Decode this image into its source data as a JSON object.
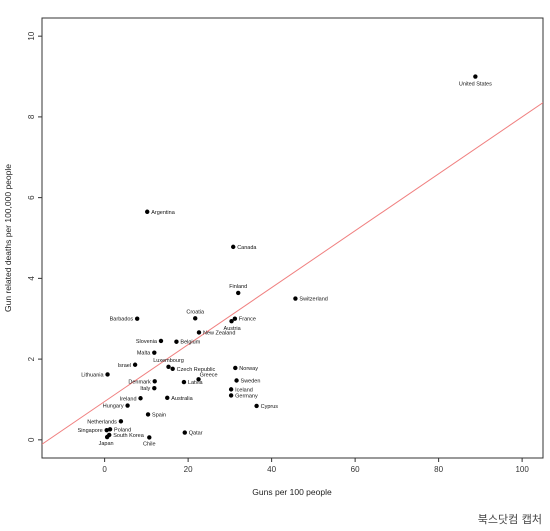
{
  "chart_data": {
    "type": "scatter",
    "xlabel": "Guns per 100 people",
    "ylabel": "Gun related deaths per 100,000 people",
    "xlim": [
      -15,
      105
    ],
    "ylim": [
      -0.45,
      10.45
    ],
    "xticks": [
      "0",
      "20",
      "40",
      "60",
      "80",
      "100"
    ],
    "yticks": [
      "0",
      "2",
      "4",
      "6",
      "8",
      "10"
    ],
    "grid": false,
    "point_color": "#000000",
    "regression_line": {
      "color": "#f08080",
      "intercept": 0.95,
      "slope": 0.0705
    },
    "points": [
      {
        "label": "United States",
        "x": 88.8,
        "y": 9.0
      },
      {
        "label": "Argentina",
        "x": 10.2,
        "y": 5.65
      },
      {
        "label": "Canada",
        "x": 30.8,
        "y": 4.78
      },
      {
        "label": "Finland",
        "x": 32.0,
        "y": 3.64
      },
      {
        "label": "Switzerland",
        "x": 45.7,
        "y": 3.5
      },
      {
        "label": "Croatia",
        "x": 21.7,
        "y": 3.01
      },
      {
        "label": "France",
        "x": 31.2,
        "y": 3.0
      },
      {
        "label": "Austria",
        "x": 30.4,
        "y": 2.94
      },
      {
        "label": "New Zealand",
        "x": 22.6,
        "y": 2.66
      },
      {
        "label": "Barbados",
        "x": 7.8,
        "y": 3.0
      },
      {
        "label": "Slovenia",
        "x": 13.5,
        "y": 2.45
      },
      {
        "label": "Belgium",
        "x": 17.2,
        "y": 2.43
      },
      {
        "label": "Malta",
        "x": 11.9,
        "y": 2.16
      },
      {
        "label": "Israel",
        "x": 7.3,
        "y": 1.86
      },
      {
        "label": "Luxembourg",
        "x": 15.3,
        "y": 1.81
      },
      {
        "label": "Czech Republic",
        "x": 16.3,
        "y": 1.76
      },
      {
        "label": "Lithuania",
        "x": 0.7,
        "y": 1.62
      },
      {
        "label": "Norway",
        "x": 31.3,
        "y": 1.78
      },
      {
        "label": "Greece",
        "x": 22.5,
        "y": 1.5
      },
      {
        "label": "Denmark",
        "x": 12.0,
        "y": 1.45
      },
      {
        "label": "Sweden",
        "x": 31.6,
        "y": 1.47
      },
      {
        "label": "Italy",
        "x": 11.9,
        "y": 1.28
      },
      {
        "label": "Latvia",
        "x": 19.0,
        "y": 1.43
      },
      {
        "label": "Iceland",
        "x": 30.3,
        "y": 1.25
      },
      {
        "label": "Australia",
        "x": 15.0,
        "y": 1.04
      },
      {
        "label": "Germany",
        "x": 30.3,
        "y": 1.1
      },
      {
        "label": "Ireland",
        "x": 8.6,
        "y": 1.03
      },
      {
        "label": "Hungary",
        "x": 5.5,
        "y": 0.85
      },
      {
        "label": "Cyprus",
        "x": 36.4,
        "y": 0.84
      },
      {
        "label": "Spain",
        "x": 10.4,
        "y": 0.63
      },
      {
        "label": "Netherlands",
        "x": 3.9,
        "y": 0.46
      },
      {
        "label": "Singapore",
        "x": 0.5,
        "y": 0.24
      },
      {
        "label": "Poland",
        "x": 1.3,
        "y": 0.26
      },
      {
        "label": "Qatar",
        "x": 19.2,
        "y": 0.18
      },
      {
        "label": "South Korea",
        "x": 1.1,
        "y": 0.12
      },
      {
        "label": "Japan",
        "x": 0.6,
        "y": 0.07
      },
      {
        "label": "Chile",
        "x": 10.7,
        "y": 0.06
      }
    ]
  },
  "credit": "북스닷컴 캡처"
}
